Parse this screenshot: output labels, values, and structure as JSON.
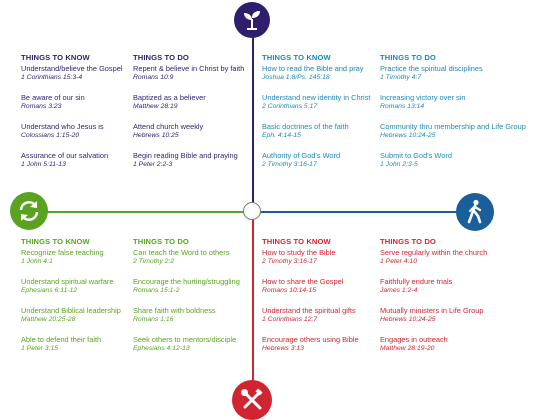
{
  "colors": {
    "purple": "#2d1f6b",
    "teal": "#1d88b3",
    "green": "#5aa321",
    "red": "#d02530",
    "dark_blue": "#1b5f9a"
  },
  "icons": {
    "top": "plant-sprout-icon",
    "left": "refresh-cycle-icon",
    "right": "walking-person-icon",
    "bottom": "wrench-screwdriver-icon"
  },
  "top_left": {
    "know": {
      "header": "THINGS TO KNOW",
      "items": [
        {
          "text": "Understand/believe the Gospel",
          "ref": "1 Corinthians 15:3-4"
        },
        {
          "text": "Be aware of our sin",
          "ref": "Romans 3:23"
        },
        {
          "text": "Understand who Jesus is",
          "ref": "Colossians 1:15-20"
        },
        {
          "text": "Assurance of our salvation",
          "ref": "1 John 5:11-13"
        }
      ]
    },
    "do": {
      "header": "THINGS TO DO",
      "items": [
        {
          "text": "Repent &  believe in Christ by faith",
          "ref": "Romans 10:9"
        },
        {
          "text": "Baptized as a believer",
          "ref": "Matthew 28:19"
        },
        {
          "text": "Attend church weekly",
          "ref": "Hebrews 10:25"
        },
        {
          "text": "Begin reading Bible and praying",
          "ref": "1 Peter 2:2-3"
        }
      ]
    }
  },
  "top_right": {
    "know": {
      "header": "THINGS TO KNOW",
      "items": [
        {
          "text": "How to read the Bible and pray",
          "ref": "Joshua 1:8/Ps. 145:18"
        },
        {
          "text": "Understand new identity in Christ",
          "ref": "2 Corinthians 5:17"
        },
        {
          "text": "Basic doctrines of the faith",
          "ref": "Eph. 4:14-15"
        },
        {
          "text": "Authority of God's Word",
          "ref": "2 Timothy 3:16-17"
        }
      ]
    },
    "do": {
      "header": "THINGS TO DO",
      "items": [
        {
          "text": "Practice the spiritual disciplines",
          "ref": "1 Timothy 4:7"
        },
        {
          "text": "Increasing victory over sin",
          "ref": "Romans 13:14"
        },
        {
          "text": "Community thru membership and Life Group",
          "ref": "Hebrews 10:24-25"
        },
        {
          "text": "Submit to God's Word",
          "ref": "1 John 2:3-5"
        }
      ]
    }
  },
  "bottom_left": {
    "know": {
      "header": "THINGS TO KNOW",
      "items": [
        {
          "text": "Recognize false teaching",
          "ref": "1 John 4:1"
        },
        {
          "text": "Understand spiritual warfare",
          "ref": "Ephesians 6:11-12"
        },
        {
          "text": "Understand Biblical leadership",
          "ref": "Matthew 20:25-28"
        },
        {
          "text": "Able to defend their faith",
          "ref": "1 Peter 3:15"
        }
      ]
    },
    "do": {
      "header": "THINGS TO DO",
      "items": [
        {
          "text": "Can teach the Word to others",
          "ref": "2 Timothy 2:2"
        },
        {
          "text": "Encourage the hurting/struggling",
          "ref": "Romans 15:1-2"
        },
        {
          "text": "Share faith with boldness",
          "ref": "Romans 1:16"
        },
        {
          "text": "Seek others to mentors/disciple",
          "ref": "Ephesians 4:12-13"
        }
      ]
    }
  },
  "bottom_right": {
    "know": {
      "header": "THINGS TO KNOW",
      "items": [
        {
          "text": "How to study the Bible",
          "ref": "2 Timothy 3:16-17"
        },
        {
          "text": "How to share the Gospel",
          "ref": "Romans 10:14-15"
        },
        {
          "text": "Understand the spiritual gifts",
          "ref": "1 Corinthians 12:7"
        },
        {
          "text": "Encourage others using Bible",
          "ref": "Hebrews 3:13"
        }
      ]
    },
    "do": {
      "header": "THINGS TO DO",
      "items": [
        {
          "text": "Serve regularly within the church",
          "ref": "1 Peter 4:10"
        },
        {
          "text": "Faithfully endure trials",
          "ref": "James 1:2-4"
        },
        {
          "text": "Mutually ministers in Life Group",
          "ref": "Hebrews 10:24-25"
        },
        {
          "text": "Engages in outreach",
          "ref": "Matthew 28:19-20"
        }
      ]
    }
  }
}
